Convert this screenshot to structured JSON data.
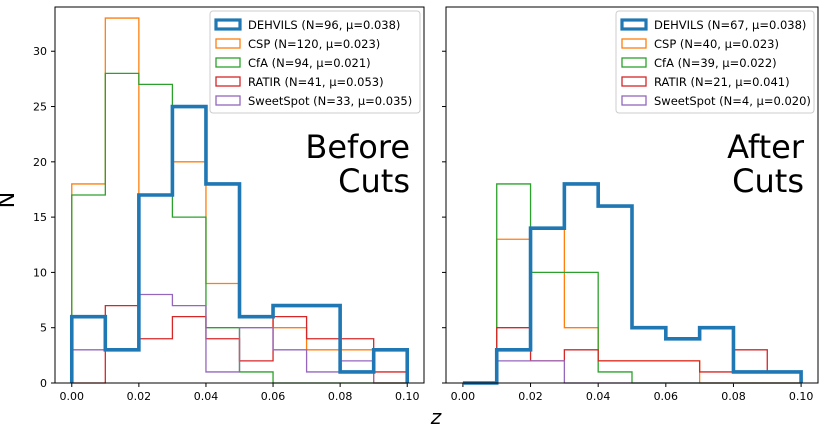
{
  "figure": {
    "ylabel": "N",
    "xlabel": "z",
    "xticks": [
      "0.00",
      "0.02",
      "0.04",
      "0.06",
      "0.08",
      "0.10"
    ],
    "yticks": [
      "0",
      "5",
      "10",
      "15",
      "20",
      "25",
      "30"
    ]
  },
  "colors": {
    "DEHVILS": "#1f77b4",
    "CSP": "#ff7f0e",
    "CfA": "#2ca02c",
    "RATIR": "#d62728",
    "SweetSpot": "#9467bd"
  },
  "chart_data": [
    {
      "type": "histogram",
      "panel_label": [
        "Before",
        "Cuts"
      ],
      "xlim": [
        -0.005,
        0.105
      ],
      "ylim": [
        0,
        34
      ],
      "bin_edges": [
        0.0,
        0.01,
        0.02,
        0.03,
        0.04,
        0.05,
        0.06,
        0.07,
        0.08,
        0.09,
        0.1
      ],
      "legend_position": "top-right",
      "series": [
        {
          "key": "DEHVILS",
          "legend": "DEHVILS (N=96, μ=0.038)",
          "counts": [
            6,
            3,
            17,
            25,
            18,
            6,
            7,
            7,
            1,
            3
          ]
        },
        {
          "key": "CSP",
          "legend": "CSP (N=120, μ=0.023)",
          "counts": [
            18,
            33,
            17,
            20,
            9,
            6,
            5,
            3,
            3,
            0
          ]
        },
        {
          "key": "CfA",
          "legend": "CfA (N=94, μ=0.021)",
          "counts": [
            17,
            28,
            27,
            15,
            5,
            1,
            0,
            0,
            0,
            0
          ]
        },
        {
          "key": "RATIR",
          "legend": "RATIR (N=41, μ=0.053)",
          "counts": [
            0,
            7,
            4,
            6,
            4,
            2,
            6,
            4,
            4,
            1
          ]
        },
        {
          "key": "SweetSpot",
          "legend": "SweetSpot (N=33, μ=0.035)",
          "counts": [
            3,
            3,
            8,
            7,
            1,
            5,
            3,
            1,
            2,
            0
          ]
        }
      ]
    },
    {
      "type": "histogram",
      "panel_label": [
        "After",
        "Cuts"
      ],
      "xlim": [
        -0.005,
        0.105
      ],
      "ylim": [
        0,
        34
      ],
      "bin_edges": [
        0.0,
        0.01,
        0.02,
        0.03,
        0.04,
        0.05,
        0.06,
        0.07,
        0.08,
        0.09,
        0.1
      ],
      "legend_position": "top-right",
      "series": [
        {
          "key": "DEHVILS",
          "legend": "DEHVILS (N=67, μ=0.038)",
          "counts": [
            0,
            3,
            14,
            18,
            16,
            5,
            4,
            5,
            1,
            1
          ]
        },
        {
          "key": "CSP",
          "legend": "CSP (N=40, μ=0.023)",
          "counts": [
            0,
            13,
            14,
            5,
            2,
            2,
            2,
            0,
            0,
            0
          ]
        },
        {
          "key": "CfA",
          "legend": "CfA (N=39, μ=0.022)",
          "counts": [
            0,
            18,
            10,
            10,
            1,
            0,
            0,
            0,
            0,
            0
          ]
        },
        {
          "key": "RATIR",
          "legend": "RATIR (N=21, μ=0.041)",
          "counts": [
            0,
            5,
            2,
            3,
            2,
            2,
            2,
            1,
            3,
            1
          ]
        },
        {
          "key": "SweetSpot",
          "legend": "SweetSpot (N=4, μ=0.020)",
          "counts": [
            0,
            2,
            2,
            0,
            0,
            0,
            0,
            0,
            0,
            0
          ]
        }
      ]
    }
  ]
}
